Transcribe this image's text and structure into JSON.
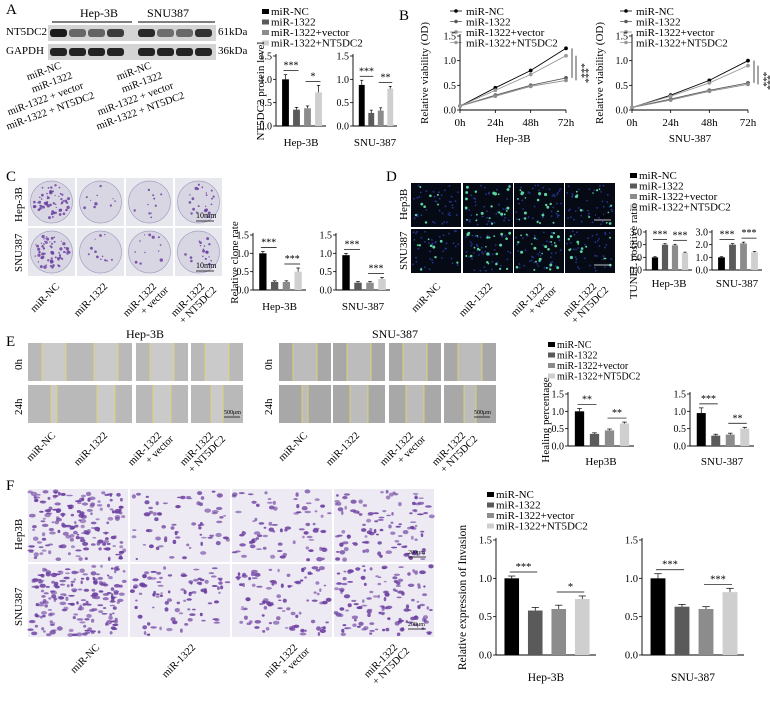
{
  "panels": {
    "A": "A",
    "B": "B",
    "C": "C",
    "D": "D",
    "E": "E",
    "F": "F"
  },
  "colors": {
    "black": "#000000",
    "dark_gray": "#5a5a5a",
    "mid_gray": "#8c8c8c",
    "light_gray": "#cfcfcf",
    "violet": "#6b3fa0",
    "yellow_line": "#e3d46a",
    "tunel_green": "#5bd6a2",
    "tunel_blue": "#2a3fb0"
  },
  "legend_labels": [
    "miR-NC",
    "miR-1322",
    "miR-1322+vector",
    "miR-1322+NT5DC2"
  ],
  "A": {
    "western": {
      "cell_lines": [
        "Hep-3B",
        "SNU387"
      ],
      "bands": [
        "NT5DC2",
        "GAPDH"
      ],
      "sizes": [
        "61kDa",
        "36kDa"
      ],
      "lanes": [
        "miR-NC",
        "miR-1322",
        "miR-1322 + vector",
        "miR-1322 + NT5DC2",
        "miR-NC",
        "miR-1322",
        "miR-1322 + vector",
        "miR-1322 + NT5DC2"
      ]
    },
    "chart": {
      "ylabel": "NT5DC2 protein level",
      "groups": [
        "Hep-3B",
        "SNU-387"
      ]
    }
  },
  "B": {
    "ylabel": "Relative viability (OD)",
    "x_ticks": [
      "0h",
      "24h",
      "48h",
      "72h"
    ],
    "groups": [
      "Hep-3B",
      "SNU-387"
    ]
  },
  "C": {
    "rows": [
      "Hep-3B",
      "SNU387"
    ],
    "scale": "10mm",
    "cols": [
      "miR-NC",
      "miR-1322",
      "miR-1322 + vector",
      "miR-1322 + NT5DC2"
    ],
    "ylabel": "Relative clone rate",
    "groups": [
      "Hep-3B",
      "SNU-387"
    ]
  },
  "D": {
    "rows": [
      "Hep3B",
      "SNU387"
    ],
    "scale": "100μm",
    "cols": [
      "miR-NC",
      "miR-1322",
      "miR-1322 + vector",
      "miR-1322 + NT5DC2"
    ],
    "ylabel": "TUNEL positive ratio",
    "groups": [
      "Hep-3B",
      "SNU-387"
    ]
  },
  "E": {
    "groups_top": [
      "Hep-3B",
      "SNU-387"
    ],
    "rows": [
      "0h",
      "24h"
    ],
    "scale": "500μm",
    "cols": [
      "miR-NC",
      "miR-1322",
      "miR-1322 + vector",
      "miR-1322 + NT5DC2"
    ],
    "ylabel": "Healing percentage",
    "groups": [
      "Hep3B",
      "SNU-387"
    ]
  },
  "F": {
    "rows": [
      "Hep3B",
      "SNU387"
    ],
    "scale": "200μm",
    "cols": [
      "miR-NC",
      "miR-1322",
      "miR-1322 + vector",
      "miR-1322 + NT5DC2"
    ],
    "ylabel": "Relative expression of Invasion",
    "groups": [
      "Hep-3B",
      "SNU-387"
    ]
  },
  "chart_data": [
    {
      "id": "A-Hep3B",
      "type": "bar",
      "title": "",
      "xlabel": "Hep-3B",
      "ylabel": "NT5DC2 protein level",
      "categories": [
        "miR-NC",
        "miR-1322",
        "miR-1322+vector",
        "miR-1322+NT5DC2"
      ],
      "values": [
        1.0,
        0.35,
        0.38,
        0.72
      ],
      "errors": [
        0.1,
        0.05,
        0.05,
        0.15
      ],
      "ylim": [
        0,
        1.5
      ],
      "yticks": [
        0.0,
        0.5,
        1.0,
        1.5
      ],
      "tick_labels": [
        "0.0",
        "0.5",
        "1.0",
        "1.5"
      ],
      "sig": [
        "***",
        "*"
      ]
    },
    {
      "id": "A-SNU387",
      "type": "bar",
      "title": "",
      "xlabel": "SNU-387",
      "ylabel": "",
      "categories": [
        "miR-NC",
        "miR-1322",
        "miR-1322+vector",
        "miR-1322+NT5DC2"
      ],
      "values": [
        0.88,
        0.28,
        0.33,
        0.8
      ],
      "errors": [
        0.1,
        0.06,
        0.06,
        0.05
      ],
      "ylim": [
        0,
        1.5
      ],
      "yticks": [
        0.0,
        0.5,
        1.0,
        1.5
      ],
      "tick_labels": [
        "0.0",
        "0.5",
        "1.0",
        "1.5"
      ],
      "sig": [
        "***",
        "**"
      ]
    },
    {
      "id": "B-Hep3B",
      "type": "line",
      "title": "",
      "xlabel": "Hep-3B",
      "ylabel": "Relative viability (OD)",
      "x": [
        "0h",
        "24h",
        "48h",
        "72h"
      ],
      "series": [
        {
          "name": "miR-NC",
          "values": [
            0.08,
            0.45,
            0.8,
            1.25
          ]
        },
        {
          "name": "miR-1322",
          "values": [
            0.08,
            0.3,
            0.5,
            0.65
          ]
        },
        {
          "name": "miR-1322+vector",
          "values": [
            0.08,
            0.28,
            0.48,
            0.6
          ]
        },
        {
          "name": "miR-1322+NT5DC2",
          "values": [
            0.08,
            0.4,
            0.72,
            1.1
          ]
        }
      ],
      "ylim": [
        0,
        1.5
      ],
      "yticks": [
        0.0,
        0.5,
        1.0,
        1.5
      ],
      "tick_labels": [
        "0.0",
        "0.5",
        "1.0",
        "1.5"
      ],
      "sig": [
        "***",
        "***"
      ]
    },
    {
      "id": "B-SNU387",
      "type": "line",
      "title": "",
      "xlabel": "SNU-387",
      "ylabel": "Relative viability (OD)",
      "x": [
        "0h",
        "24h",
        "48h",
        "72h"
      ],
      "series": [
        {
          "name": "miR-NC",
          "values": [
            0.05,
            0.3,
            0.6,
            1.0
          ]
        },
        {
          "name": "miR-1322",
          "values": [
            0.05,
            0.22,
            0.4,
            0.55
          ]
        },
        {
          "name": "miR-1322+vector",
          "values": [
            0.05,
            0.2,
            0.38,
            0.52
          ]
        },
        {
          "name": "miR-1322+NT5DC2",
          "values": [
            0.05,
            0.28,
            0.55,
            0.9
          ]
        }
      ],
      "ylim": [
        0,
        1.5
      ],
      "yticks": [
        0.0,
        0.5,
        1.0,
        1.5
      ],
      "tick_labels": [
        "0.0",
        "0.5",
        "1.0",
        "1.5"
      ],
      "sig": [
        "***",
        "***"
      ]
    },
    {
      "id": "C-Hep3B",
      "type": "bar",
      "title": "",
      "xlabel": "Hep-3B",
      "ylabel": "Relative clone rate",
      "categories": [
        "miR-NC",
        "miR-1322",
        "miR-1322+vector",
        "miR-1322+NT5DC2"
      ],
      "values": [
        1.0,
        0.22,
        0.22,
        0.5
      ],
      "errors": [
        0.05,
        0.03,
        0.03,
        0.1
      ],
      "ylim": [
        0,
        1.5
      ],
      "yticks": [
        0.0,
        0.5,
        1.0,
        1.5
      ],
      "tick_labels": [
        "0.0",
        "0.5",
        "1.0",
        "1.5"
      ],
      "sig": [
        "***",
        "***"
      ]
    },
    {
      "id": "C-SNU387",
      "type": "bar",
      "title": "",
      "xlabel": "SNU-387",
      "ylabel": "",
      "categories": [
        "miR-NC",
        "miR-1322",
        "miR-1322+vector",
        "miR-1322+NT5DC2"
      ],
      "values": [
        0.95,
        0.2,
        0.2,
        0.3
      ],
      "errors": [
        0.05,
        0.03,
        0.03,
        0.04
      ],
      "ylim": [
        0,
        1.5
      ],
      "yticks": [
        0.0,
        0.5,
        1.0,
        1.5
      ],
      "tick_labels": [
        "0.0",
        "0.5",
        "1.0",
        "1.5"
      ],
      "sig": [
        "***",
        "***"
      ]
    },
    {
      "id": "D-Hep3B",
      "type": "bar",
      "title": "",
      "xlabel": "Hep-3B",
      "ylabel": "TUNEL positive ratio",
      "categories": [
        "miR-NC",
        "miR-1322",
        "miR-1322+vector",
        "miR-1322+NT5DC2"
      ],
      "values": [
        1.0,
        2.0,
        1.95,
        1.35
      ],
      "errors": [
        0.05,
        0.08,
        0.08,
        0.06
      ],
      "ylim": [
        0,
        3.0
      ],
      "yticks": [
        0.0,
        1.0,
        2.0,
        3.0
      ],
      "tick_labels": [
        "0.0",
        "1.0",
        "2.0",
        "3.0"
      ],
      "sig": [
        "***",
        "***"
      ]
    },
    {
      "id": "D-SNU387",
      "type": "bar",
      "title": "",
      "xlabel": "SNU-387",
      "ylabel": "",
      "categories": [
        "miR-NC",
        "miR-1322",
        "miR-1322+vector",
        "miR-1322+NT5DC2"
      ],
      "values": [
        1.0,
        2.0,
        2.1,
        1.4
      ],
      "errors": [
        0.05,
        0.08,
        0.1,
        0.06
      ],
      "ylim": [
        0,
        3.0
      ],
      "yticks": [
        0.0,
        1.0,
        2.0,
        3.0
      ],
      "tick_labels": [
        "0.0",
        "1.0",
        "2.0",
        "3.0"
      ],
      "sig": [
        "***",
        "***"
      ]
    },
    {
      "id": "E-Hep3B",
      "type": "bar",
      "title": "",
      "xlabel": "Hep3B",
      "ylabel": "Healing percentage",
      "categories": [
        "miR-NC",
        "miR-1322",
        "miR-1322+vector",
        "miR-1322+NT5DC2"
      ],
      "values": [
        1.0,
        0.35,
        0.45,
        0.65
      ],
      "errors": [
        0.08,
        0.03,
        0.04,
        0.04
      ],
      "ylim": [
        0,
        1.5
      ],
      "yticks": [
        0.0,
        0.5,
        1.0,
        1.5
      ],
      "tick_labels": [
        "0.0",
        "0.5",
        "1.0",
        "1.5"
      ],
      "sig": [
        "**",
        "**"
      ]
    },
    {
      "id": "E-SNU387",
      "type": "bar",
      "title": "",
      "xlabel": "SNU-387",
      "ylabel": "",
      "categories": [
        "miR-NC",
        "miR-1322",
        "miR-1322+vector",
        "miR-1322+NT5DC2"
      ],
      "values": [
        0.95,
        0.3,
        0.33,
        0.5
      ],
      "errors": [
        0.15,
        0.04,
        0.04,
        0.04
      ],
      "ylim": [
        0,
        1.5
      ],
      "yticks": [
        0.0,
        0.5,
        1.0,
        1.5
      ],
      "tick_labels": [
        "0.0",
        "0.5",
        "1.0",
        "1.5"
      ],
      "sig": [
        "***",
        "**"
      ]
    },
    {
      "id": "F-Hep3B",
      "type": "bar",
      "title": "",
      "xlabel": "Hep-3B",
      "ylabel": "Relative expression of Invasion",
      "categories": [
        "miR-NC",
        "miR-1322",
        "miR-1322+vector",
        "miR-1322+NT5DC2"
      ],
      "values": [
        1.0,
        0.58,
        0.6,
        0.73
      ],
      "errors": [
        0.03,
        0.04,
        0.05,
        0.04
      ],
      "ylim": [
        0,
        1.5
      ],
      "yticks": [
        0.0,
        0.5,
        1.0,
        1.5
      ],
      "tick_labels": [
        "0.0",
        "0.5",
        "1.0",
        "1.5"
      ],
      "sig": [
        "***",
        "*"
      ]
    },
    {
      "id": "F-SNU387",
      "type": "bar",
      "title": "",
      "xlabel": "SNU-387",
      "ylabel": "",
      "categories": [
        "miR-NC",
        "miR-1322",
        "miR-1322+vector",
        "miR-1322+NT5DC2"
      ],
      "values": [
        1.0,
        0.63,
        0.6,
        0.82
      ],
      "errors": [
        0.06,
        0.03,
        0.03,
        0.05
      ],
      "ylim": [
        0,
        1.5
      ],
      "yticks": [
        0.0,
        0.5,
        1.0,
        1.5
      ],
      "tick_labels": [
        "0.0",
        "0.5",
        "1.0",
        "1.5"
      ],
      "sig": [
        "***",
        "***"
      ]
    }
  ]
}
